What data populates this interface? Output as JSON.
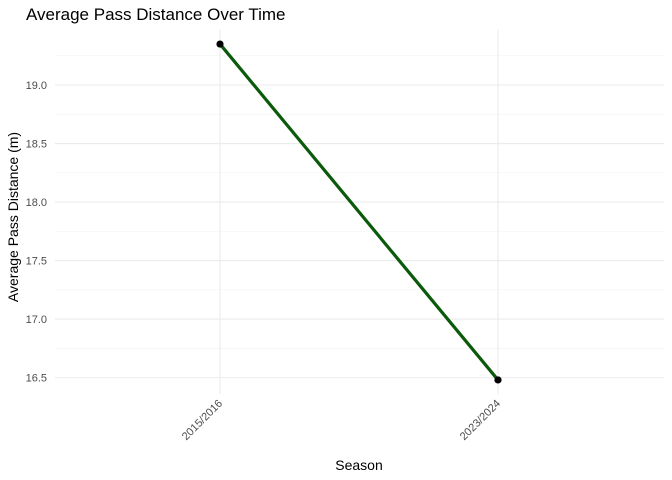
{
  "chart_data": {
    "type": "line",
    "title": "Average Pass Distance Over Time",
    "xlabel": "Season",
    "ylabel": "Average Pass Distance (m)",
    "categories": [
      "2015/2016",
      "2023/2024"
    ],
    "series": [
      {
        "values": [
          19.35,
          16.48
        ]
      }
    ],
    "y_ticks": [
      "16.5",
      "17.0",
      "17.5",
      "18.0",
      "18.5",
      "19.0"
    ],
    "ylim": [
      16.36,
      19.47
    ],
    "grid": true,
    "line_color": "#0b5a0b",
    "point_color": "#000000"
  }
}
